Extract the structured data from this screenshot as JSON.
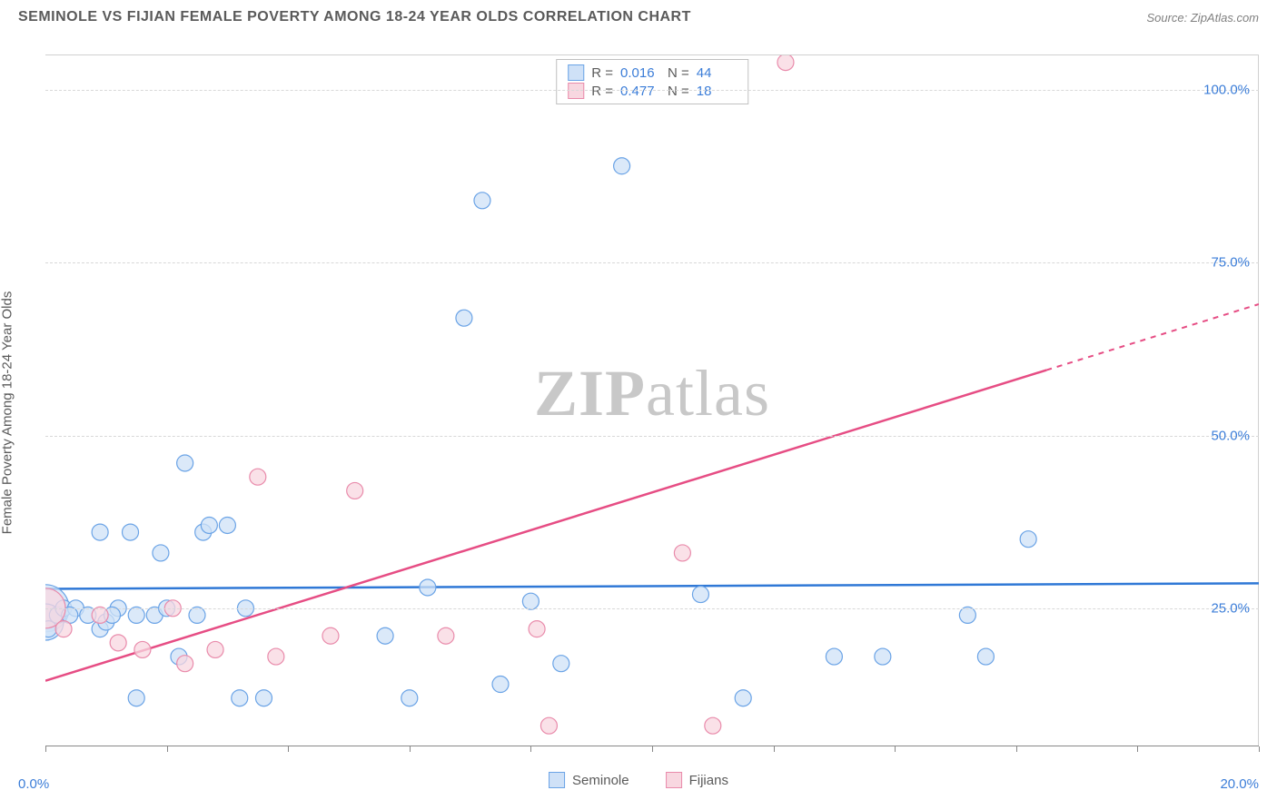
{
  "header": {
    "title": "SEMINOLE VS FIJIAN FEMALE POVERTY AMONG 18-24 YEAR OLDS CORRELATION CHART",
    "source": "Source: ZipAtlas.com"
  },
  "chart": {
    "type": "scatter",
    "ylabel": "Female Poverty Among 18-24 Year Olds",
    "watermark": "ZIPatlas",
    "xlim": [
      0,
      20
    ],
    "ylim": [
      5,
      105
    ],
    "background_color": "#ffffff",
    "grid_color": "#d8d8d8",
    "axis_color": "#888888",
    "tick_color": "#3b7dd8",
    "yticks": [
      {
        "v": 25,
        "label": "25.0%"
      },
      {
        "v": 50,
        "label": "50.0%"
      },
      {
        "v": 75,
        "label": "75.0%"
      },
      {
        "v": 100,
        "label": "100.0%"
      }
    ],
    "xticks_major": [
      0,
      2,
      4,
      6,
      8,
      10,
      12,
      14,
      16,
      18,
      20
    ],
    "xlabels": [
      {
        "v": 0,
        "label": "0.0%"
      },
      {
        "v": 20,
        "label": "20.0%"
      }
    ],
    "series": [
      {
        "name": "Seminole",
        "color_fill": "#cfe1f7",
        "color_stroke": "#6aa3e6",
        "line_color": "#2f78d6",
        "line_y0": 27.8,
        "line_y20": 28.6,
        "line_dashed_from": 20,
        "marker_r": 9,
        "R": "0.016",
        "N": "44",
        "points": [
          {
            "x": 0.0,
            "y": 25,
            "r": 26
          },
          {
            "x": 0.0,
            "y": 23,
            "r": 20
          },
          {
            "x": 0.05,
            "y": 22
          },
          {
            "x": 0.2,
            "y": 24
          },
          {
            "x": 0.3,
            "y": 25
          },
          {
            "x": 0.5,
            "y": 25
          },
          {
            "x": 0.7,
            "y": 24
          },
          {
            "x": 0.9,
            "y": 22
          },
          {
            "x": 0.9,
            "y": 36
          },
          {
            "x": 1.2,
            "y": 25
          },
          {
            "x": 1.4,
            "y": 36
          },
          {
            "x": 1.5,
            "y": 24
          },
          {
            "x": 1.5,
            "y": 12
          },
          {
            "x": 1.8,
            "y": 24
          },
          {
            "x": 1.9,
            "y": 33
          },
          {
            "x": 2.3,
            "y": 46
          },
          {
            "x": 2.5,
            "y": 24
          },
          {
            "x": 2.6,
            "y": 36
          },
          {
            "x": 2.7,
            "y": 37
          },
          {
            "x": 3.0,
            "y": 37
          },
          {
            "x": 3.2,
            "y": 12
          },
          {
            "x": 3.3,
            "y": 25
          },
          {
            "x": 3.6,
            "y": 12
          },
          {
            "x": 5.6,
            "y": 21
          },
          {
            "x": 6.0,
            "y": 12
          },
          {
            "x": 6.3,
            "y": 28
          },
          {
            "x": 6.9,
            "y": 67
          },
          {
            "x": 7.2,
            "y": 84
          },
          {
            "x": 7.5,
            "y": 14
          },
          {
            "x": 8.0,
            "y": 26
          },
          {
            "x": 8.5,
            "y": 17
          },
          {
            "x": 9.5,
            "y": 89
          },
          {
            "x": 10.8,
            "y": 27
          },
          {
            "x": 11.5,
            "y": 12
          },
          {
            "x": 13.0,
            "y": 18
          },
          {
            "x": 13.8,
            "y": 18
          },
          {
            "x": 15.2,
            "y": 24
          },
          {
            "x": 15.5,
            "y": 18
          },
          {
            "x": 16.2,
            "y": 35
          },
          {
            "x": 1.0,
            "y": 23
          },
          {
            "x": 0.4,
            "y": 24
          },
          {
            "x": 1.1,
            "y": 24
          },
          {
            "x": 2.0,
            "y": 25
          },
          {
            "x": 2.2,
            "y": 18
          }
        ]
      },
      {
        "name": "Fijians",
        "color_fill": "#f8d7e0",
        "color_stroke": "#e98bab",
        "line_color": "#e64d84",
        "line_y0": 14.5,
        "line_y20": 69,
        "line_dashed_from": 16.5,
        "marker_r": 9,
        "R": "0.477",
        "N": "18",
        "points": [
          {
            "x": 0.0,
            "y": 25,
            "r": 22
          },
          {
            "x": 0.3,
            "y": 22
          },
          {
            "x": 0.9,
            "y": 24
          },
          {
            "x": 1.2,
            "y": 20
          },
          {
            "x": 1.6,
            "y": 19
          },
          {
            "x": 2.1,
            "y": 25
          },
          {
            "x": 2.3,
            "y": 17
          },
          {
            "x": 2.8,
            "y": 19
          },
          {
            "x": 3.5,
            "y": 44
          },
          {
            "x": 3.8,
            "y": 18
          },
          {
            "x": 4.7,
            "y": 21
          },
          {
            "x": 5.1,
            "y": 42
          },
          {
            "x": 6.6,
            "y": 21
          },
          {
            "x": 8.1,
            "y": 22
          },
          {
            "x": 8.3,
            "y": 8
          },
          {
            "x": 10.5,
            "y": 33
          },
          {
            "x": 11.0,
            "y": 8
          },
          {
            "x": 12.2,
            "y": 104
          }
        ]
      }
    ],
    "legend": {
      "bottom": [
        "Seminole",
        "Fijians"
      ]
    }
  }
}
